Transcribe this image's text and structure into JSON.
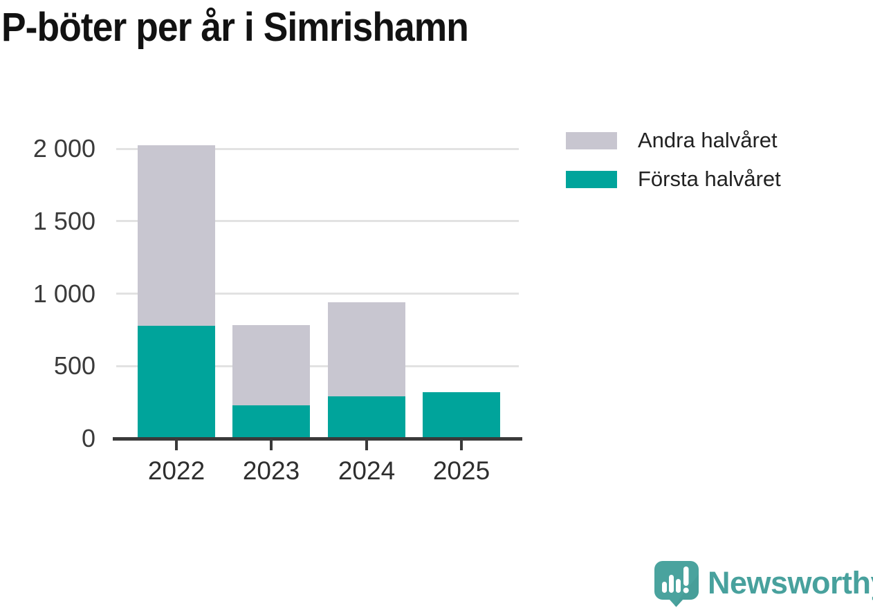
{
  "title": "P-böter per år i Simrishamn",
  "legend": {
    "items": [
      {
        "label": "Andra halvåret",
        "color": "#c8c6d0"
      },
      {
        "label": "Första halvåret",
        "color": "#00a49b"
      }
    ]
  },
  "footer": {
    "brand_text": "Newsworthy",
    "logo_icon": "speech-bubble-bar-chart-icon",
    "logo_color": "#4aa39e",
    "text_color": "#48a19d"
  },
  "colors": {
    "first_half": "#00a49b",
    "second_half": "#c8c6d0",
    "axis": "#3a3a3a",
    "gridline": "#e2e2e2",
    "title_text": "#121212"
  },
  "chart_data": {
    "type": "bar",
    "stacked": true,
    "title": "P-böter per år i Simrishamn",
    "categories": [
      "2022",
      "2023",
      "2024",
      "2025"
    ],
    "series": [
      {
        "name": "Första halvåret",
        "color": "#00a49b",
        "values": [
          780,
          230,
          290,
          320
        ]
      },
      {
        "name": "Andra halvåret",
        "color": "#c8c6d0",
        "values": [
          1245,
          555,
          650,
          0
        ]
      }
    ],
    "totals": [
      2025,
      785,
      940,
      320
    ],
    "xlabel": "",
    "ylabel": "",
    "ylim": [
      0,
      2100
    ],
    "yticks": [
      {
        "value": 0,
        "label": "0"
      },
      {
        "value": 500,
        "label": "500"
      },
      {
        "value": 1000,
        "label": "1 000"
      },
      {
        "value": 1500,
        "label": "1 500"
      },
      {
        "value": 2000,
        "label": "2 000"
      }
    ],
    "grid": "horizontal",
    "legend_position": "top-right"
  }
}
